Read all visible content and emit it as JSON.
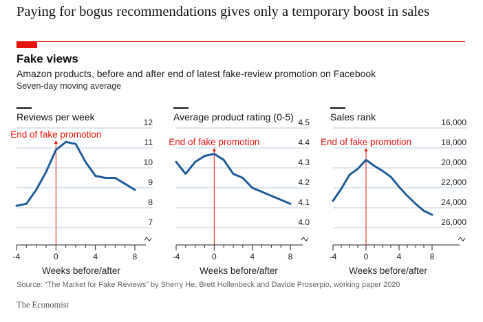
{
  "headline": "Paying for bogus recommendations gives only a temporary boost in sales",
  "title": "Fake views",
  "subtitle": "Amazon products, before and after end of latest fake-review promotion on Facebook",
  "note": "Seven-day moving average",
  "source": "Source: “The Market for Fake Reviews” by Sherry He, Brett Hollenbeck and Davide Proserpio, working paper 2020",
  "brand": "The Economist",
  "colors": {
    "accent": "#e3120b",
    "line": "#1f5c99",
    "grid": "#b8ccdc",
    "annotation": "#e3120b"
  },
  "chart_data": [
    {
      "type": "line",
      "title": "Reviews per week",
      "xlabel": "Weeks before/after",
      "x": [
        -4,
        -3,
        -2,
        -1,
        0,
        1,
        2,
        3,
        4,
        5,
        6,
        7,
        8
      ],
      "values": [
        8.1,
        8.2,
        8.9,
        9.8,
        10.9,
        11.3,
        11.2,
        10.3,
        9.6,
        9.5,
        9.5,
        9.2,
        8.9
      ],
      "xlim": [
        -4,
        8
      ],
      "xticks": [
        "-4",
        "0",
        "4",
        "8"
      ],
      "ylim": [
        7,
        12
      ],
      "yticks": [
        7,
        8,
        9,
        10,
        11,
        12
      ],
      "ytick_labels": [
        "7",
        "8",
        "9",
        "10",
        "11",
        "12"
      ],
      "annotation": {
        "x": 0,
        "text": "End of fake promotion"
      }
    },
    {
      "type": "line",
      "title": "Average product rating (0-5)",
      "xlabel": "Weeks before/after",
      "x": [
        -4,
        -3,
        -2,
        -1,
        0,
        1,
        2,
        3,
        4,
        5,
        6,
        7,
        8
      ],
      "values": [
        4.33,
        4.27,
        4.33,
        4.36,
        4.37,
        4.34,
        4.27,
        4.25,
        4.2,
        4.18,
        4.16,
        4.14,
        4.12
      ],
      "xlim": [
        -4,
        8
      ],
      "xticks": [
        "-4",
        "0",
        "4",
        "8"
      ],
      "ylim": [
        4.0,
        4.5
      ],
      "yticks": [
        4.0,
        4.1,
        4.2,
        4.3,
        4.4,
        4.5
      ],
      "ytick_labels": [
        "4.0",
        "4.1",
        "4.2",
        "4.3",
        "4.4",
        "4.5"
      ],
      "annotation": {
        "x": 0,
        "text": "End of fake promotion"
      }
    },
    {
      "type": "line",
      "title": "Sales rank",
      "xlabel": "Weeks before/after",
      "inverted_y": true,
      "x": [
        -4,
        -3,
        -2,
        -1,
        0,
        1,
        2,
        3,
        4,
        5,
        6,
        7,
        8
      ],
      "values": [
        23300,
        22100,
        20700,
        20100,
        19200,
        19800,
        20300,
        20900,
        21900,
        22800,
        23600,
        24300,
        24700
      ],
      "xlim": [
        -4,
        8
      ],
      "xticks": [
        "-4",
        "0",
        "4",
        "8"
      ],
      "ylim": [
        16000,
        26000
      ],
      "yticks": [
        16000,
        18000,
        20000,
        22000,
        24000,
        26000
      ],
      "ytick_labels": [
        "16,000",
        "18,000",
        "20,000",
        "22,000",
        "24,000",
        "26,000"
      ],
      "annotation": {
        "x": 0,
        "text": "End of fake promotion"
      }
    }
  ]
}
